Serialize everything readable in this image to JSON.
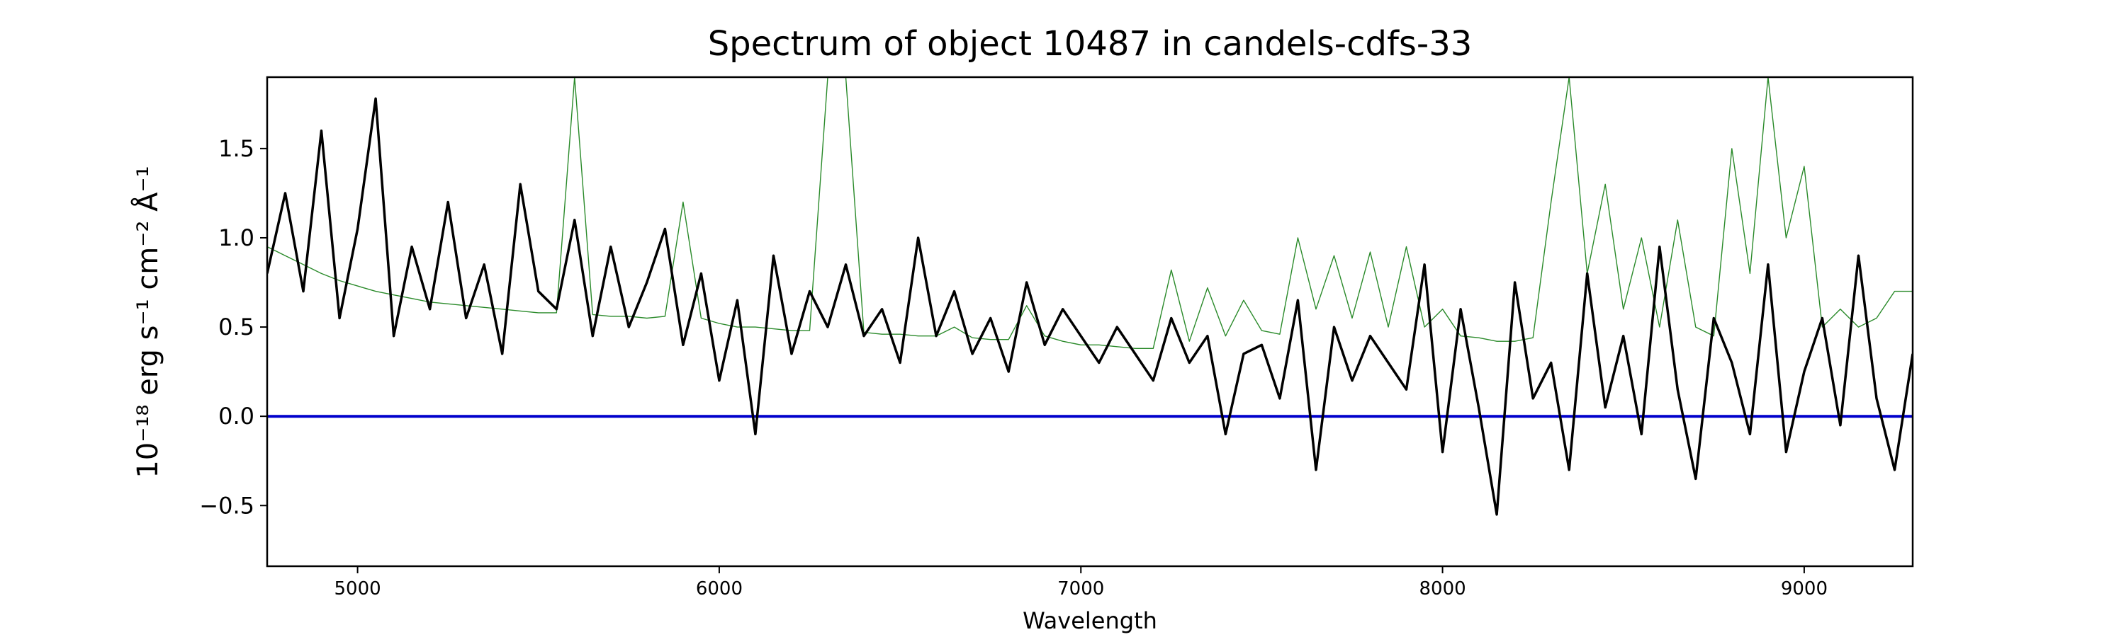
{
  "chart_data": {
    "type": "line",
    "title": "Spectrum of object 10487 in candels-cdfs-33",
    "x_label": "Wavelength",
    "y_label": "10⁻¹⁸ erg s⁻¹ cm⁻² Å⁻¹",
    "x": [
      4750,
      4800,
      4850,
      4900,
      4950,
      5000,
      5050,
      5100,
      5150,
      5200,
      5250,
      5300,
      5350,
      5400,
      5450,
      5500,
      5550,
      5600,
      5650,
      5700,
      5750,
      5800,
      5850,
      5900,
      5950,
      6000,
      6050,
      6100,
      6150,
      6200,
      6250,
      6300,
      6350,
      6400,
      6450,
      6500,
      6550,
      6600,
      6650,
      6700,
      6750,
      6800,
      6850,
      6900,
      6950,
      7000,
      7050,
      7100,
      7150,
      7200,
      7250,
      7300,
      7350,
      7400,
      7450,
      7500,
      7550,
      7600,
      7650,
      7700,
      7750,
      7800,
      7850,
      7900,
      7950,
      8000,
      8050,
      8100,
      8150,
      8200,
      8250,
      8300,
      8350,
      8400,
      8450,
      8500,
      8550,
      8600,
      8650,
      8700,
      8750,
      8800,
      8850,
      8900,
      8950,
      9000,
      9050,
      9100,
      9150,
      9200,
      9250,
      9300
    ],
    "series": [
      {
        "color": "#2a8a2a",
        "width": 1.4,
        "values": [
          0.95,
          0.9,
          0.85,
          0.8,
          0.76,
          0.73,
          0.7,
          0.68,
          0.66,
          0.64,
          0.63,
          0.62,
          0.61,
          0.6,
          0.59,
          0.58,
          0.58,
          1.9,
          0.57,
          0.56,
          0.56,
          0.55,
          0.56,
          1.2,
          0.55,
          0.52,
          0.5,
          0.5,
          0.49,
          0.48,
          0.48,
          1.9,
          1.9,
          0.47,
          0.46,
          0.46,
          0.45,
          0.45,
          0.5,
          0.44,
          0.43,
          0.43,
          0.62,
          0.45,
          0.42,
          0.4,
          0.4,
          0.39,
          0.38,
          0.38,
          0.82,
          0.42,
          0.72,
          0.45,
          0.65,
          0.48,
          0.46,
          1.0,
          0.6,
          0.9,
          0.55,
          0.92,
          0.5,
          0.95,
          0.5,
          0.6,
          0.45,
          0.44,
          0.42,
          0.42,
          0.44,
          1.2,
          1.9,
          0.8,
          1.3,
          0.6,
          1.0,
          0.5,
          1.1,
          0.5,
          0.45,
          1.5,
          0.8,
          1.9,
          1.0,
          1.4,
          0.5,
          0.6,
          0.5,
          0.55,
          0.7,
          0.7
        ]
      },
      {
        "color": "#0000cc",
        "width": 4,
        "x": [
          4750,
          9300
        ],
        "values": [
          0,
          0
        ]
      },
      {
        "color": "#000000",
        "width": 3.5,
        "values": [
          0.8,
          1.25,
          0.7,
          1.6,
          0.55,
          1.05,
          1.78,
          0.45,
          0.95,
          0.6,
          1.2,
          0.55,
          0.85,
          0.35,
          1.3,
          0.7,
          0.6,
          1.1,
          0.45,
          0.95,
          0.5,
          0.75,
          1.05,
          0.4,
          0.8,
          0.2,
          0.65,
          -0.1,
          0.9,
          0.35,
          0.7,
          0.5,
          0.85,
          0.45,
          0.6,
          0.3,
          1.0,
          0.45,
          0.7,
          0.35,
          0.55,
          0.25,
          0.75,
          0.4,
          0.6,
          0.45,
          0.3,
          0.5,
          0.35,
          0.2,
          0.55,
          0.3,
          0.45,
          -0.1,
          0.35,
          0.4,
          0.1,
          0.65,
          -0.3,
          0.5,
          0.2,
          0.45,
          0.3,
          0.15,
          0.85,
          -0.2,
          0.6,
          0.05,
          -0.55,
          0.75,
          0.1,
          0.3,
          -0.3,
          0.8,
          0.05,
          0.45,
          -0.1,
          0.95,
          0.15,
          -0.35,
          0.55,
          0.3,
          -0.1,
          0.85,
          -0.2,
          0.25,
          0.55,
          -0.05,
          0.9,
          0.1,
          -0.3,
          0.35
        ]
      }
    ],
    "xlim": [
      4750,
      9300
    ],
    "ylim": [
      -0.84,
      1.9
    ],
    "xticks": [
      5000,
      6000,
      7000,
      8000,
      9000
    ],
    "yticks": [
      {
        "value": -0.5,
        "label": "−0.5"
      },
      {
        "value": 0,
        "label": "0.0"
      },
      {
        "value": 0.5,
        "label": "0.5"
      },
      {
        "value": 1,
        "label": "1.0"
      },
      {
        "value": 1.5,
        "label": "1.5"
      }
    ]
  }
}
